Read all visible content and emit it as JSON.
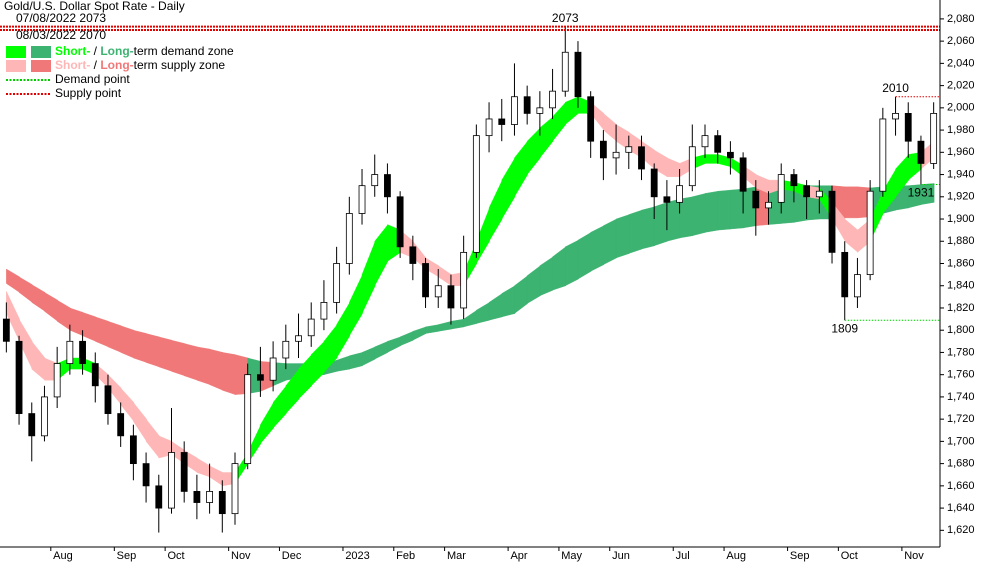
{
  "chart_data": {
    "type": "candlestick",
    "title": "Gold/U.S. Dollar Spot Rate - Daily",
    "categories": [
      null,
      null,
      null,
      null,
      "Aug",
      null,
      null,
      null,
      null,
      "Sep",
      null,
      null,
      null,
      "Oct",
      null,
      null,
      null,
      null,
      "Nov",
      null,
      null,
      null,
      "Dec",
      null,
      null,
      null,
      null,
      "2023",
      null,
      null,
      null,
      "Feb",
      null,
      null,
      null,
      "Mar",
      null,
      null,
      null,
      null,
      "Apr",
      null,
      null,
      null,
      "May",
      null,
      null,
      null,
      "Jun",
      null,
      null,
      null,
      null,
      "Jul",
      null,
      null,
      null,
      "Aug",
      null,
      null,
      null,
      null,
      "Sep",
      null,
      null,
      null,
      "Oct",
      null,
      null,
      null,
      null,
      "Nov",
      null,
      null
    ],
    "open": [
      1810,
      1790,
      1725,
      1705,
      1740,
      1770,
      1790,
      1770,
      1750,
      1725,
      1705,
      1680,
      1660,
      1640,
      1690,
      1655,
      1645,
      1655,
      1635,
      1680,
      1760,
      1755,
      1775,
      1790,
      1795,
      1810,
      1825,
      1860,
      1905,
      1930,
      1940,
      1920,
      1875,
      1860,
      1830,
      1840,
      1820,
      1870,
      1975,
      1990,
      1985,
      2010,
      1995,
      2000,
      2015,
      2050,
      2010,
      1970,
      1955,
      1960,
      1965,
      1945,
      1920,
      1915,
      1930,
      1965,
      1975,
      1960,
      1955,
      1925,
      1910,
      1915,
      1940,
      1930,
      1920,
      1925,
      1870,
      1830,
      1850,
      1925,
      1990,
      1995,
      1970,
      1950
    ],
    "high": [
      1825,
      1795,
      1735,
      1750,
      1785,
      1805,
      1800,
      1780,
      1760,
      1735,
      1715,
      1690,
      1670,
      1730,
      1700,
      1670,
      1680,
      1665,
      1690,
      1770,
      1785,
      1790,
      1805,
      1815,
      1825,
      1845,
      1875,
      1920,
      1945,
      1958,
      1950,
      1925,
      1885,
      1865,
      1855,
      1850,
      1885,
      1985,
      2005,
      2008,
      2040,
      2020,
      2015,
      2035,
      2073,
      2060,
      2015,
      1980,
      1985,
      1975,
      1975,
      1950,
      1935,
      1945,
      1985,
      1985,
      1980,
      1970,
      1960,
      1935,
      1925,
      1950,
      1945,
      1935,
      1935,
      1930,
      1880,
      1865,
      1935,
      2000,
      2010,
      2005,
      1975,
      2005
    ],
    "low": [
      1780,
      1715,
      1682,
      1700,
      1730,
      1760,
      1760,
      1735,
      1715,
      1695,
      1665,
      1645,
      1618,
      1635,
      1645,
      1630,
      1635,
      1618,
      1625,
      1675,
      1740,
      1745,
      1765,
      1775,
      1785,
      1800,
      1815,
      1850,
      1895,
      1920,
      1905,
      1865,
      1845,
      1820,
      1820,
      1805,
      1810,
      1865,
      1960,
      1970,
      1975,
      1985,
      1975,
      1990,
      2010,
      2000,
      1955,
      1935,
      1940,
      1945,
      1935,
      1900,
      1890,
      1905,
      1925,
      1955,
      1950,
      1940,
      1905,
      1885,
      1895,
      1905,
      1915,
      1900,
      1905,
      1860,
      1809,
      1820,
      1845,
      1920,
      1975,
      1955,
      1931,
      1945
    ],
    "close": [
      1790,
      1725,
      1705,
      1740,
      1770,
      1790,
      1770,
      1750,
      1725,
      1705,
      1680,
      1660,
      1640,
      1690,
      1655,
      1645,
      1655,
      1635,
      1680,
      1760,
      1755,
      1775,
      1790,
      1795,
      1810,
      1825,
      1860,
      1905,
      1930,
      1940,
      1920,
      1875,
      1860,
      1830,
      1840,
      1820,
      1870,
      1975,
      1990,
      1985,
      2010,
      1995,
      2000,
      2015,
      2050,
      2010,
      1970,
      1955,
      1960,
      1965,
      1945,
      1920,
      1915,
      1930,
      1965,
      1975,
      1960,
      1955,
      1925,
      1910,
      1915,
      1940,
      1930,
      1920,
      1925,
      1870,
      1830,
      1850,
      1925,
      1990,
      1995,
      1970,
      1950,
      1995
    ],
    "zones": {
      "long": {
        "upper": [
          1855,
          1848,
          1841,
          1834,
          1827,
          1820,
          1816,
          1812,
          1808,
          1804,
          1800,
          1797,
          1794,
          1791,
          1788,
          1785,
          1783,
          1780,
          1778,
          1775,
          1772,
          1771,
          1770,
          1770,
          1770,
          1770,
          1773,
          1777,
          1780,
          1785,
          1790,
          1794,
          1799,
          1803,
          1805,
          1808,
          1810,
          1818,
          1825,
          1833,
          1840,
          1849,
          1858,
          1866,
          1875,
          1881,
          1888,
          1894,
          1900,
          1904,
          1908,
          1911,
          1915,
          1918,
          1920,
          1923,
          1925,
          1926,
          1927,
          1929,
          1930,
          1930,
          1930,
          1930,
          1930,
          1930,
          1929,
          1929,
          1928,
          1929,
          1930,
          1930,
          1931,
          1932
        ],
        "lower": [
          1842,
          1834,
          1825,
          1817,
          1808,
          1800,
          1795,
          1790,
          1785,
          1780,
          1775,
          1771,
          1767,
          1763,
          1759,
          1755,
          1751,
          1746,
          1742,
          1743,
          1745,
          1750,
          1755,
          1757,
          1758,
          1760,
          1763,
          1765,
          1768,
          1774,
          1780,
          1786,
          1791,
          1797,
          1799,
          1801,
          1803,
          1806,
          1809,
          1812,
          1815,
          1824,
          1831,
          1836,
          1840,
          1846,
          1853,
          1859,
          1865,
          1869,
          1873,
          1876,
          1880,
          1883,
          1885,
          1888,
          1890,
          1891,
          1892,
          1894,
          1895,
          1896,
          1897,
          1899,
          1900,
          1900,
          1901,
          1901,
          1902,
          1905,
          1908,
          1910,
          1913,
          1915
        ]
      },
      "short": {
        "upper": [
          1835,
          1810,
          1790,
          1775,
          1770,
          1775,
          1775,
          1770,
          1760,
          1748,
          1735,
          1720,
          1705,
          1700,
          1692,
          1685,
          1678,
          1672,
          1672,
          1690,
          1715,
          1735,
          1750,
          1765,
          1778,
          1790,
          1805,
          1825,
          1850,
          1880,
          1895,
          1890,
          1880,
          1865,
          1858,
          1850,
          1852,
          1880,
          1910,
          1935,
          1955,
          1970,
          1982,
          1992,
          2005,
          2010,
          2005,
          1995,
          1985,
          1978,
          1970,
          1962,
          1955,
          1950,
          1955,
          1958,
          1958,
          1955,
          1948,
          1940,
          1935,
          1935,
          1933,
          1930,
          1928,
          1915,
          1900,
          1890,
          1900,
          1925,
          1945,
          1958,
          1960,
          1970
        ],
        "lower": [
          1815,
          1790,
          1765,
          1755,
          1755,
          1765,
          1765,
          1760,
          1748,
          1733,
          1718,
          1700,
          1685,
          1688,
          1680,
          1672,
          1668,
          1660,
          1662,
          1680,
          1698,
          1712,
          1725,
          1738,
          1750,
          1762,
          1775,
          1795,
          1815,
          1840,
          1862,
          1870,
          1865,
          1855,
          1848,
          1840,
          1840,
          1860,
          1880,
          1900,
          1920,
          1940,
          1955,
          1970,
          1985,
          1995,
          1995,
          1980,
          1970,
          1962,
          1955,
          1945,
          1938,
          1938,
          1945,
          1950,
          1950,
          1947,
          1938,
          1928,
          1923,
          1927,
          1925,
          1920,
          1918,
          1900,
          1880,
          1870,
          1880,
          1905,
          1920,
          1935,
          1945,
          1955
        ]
      }
    },
    "supply_lines": [
      {
        "label": "07/08/2022 2073",
        "value": 2073
      },
      {
        "label": "08/03/2022 2070",
        "value": 2070
      }
    ],
    "supply_points": [
      2010
    ],
    "demand_points": [
      1931,
      1809
    ],
    "legend": [
      {
        "kind": "demand",
        "parts": [
          "Short-",
          " / ",
          "Long-",
          "term demand zone"
        ]
      },
      {
        "kind": "supply",
        "parts": [
          "Short-",
          " / ",
          "Long-",
          "term supply zone"
        ]
      },
      {
        "kind": "demand",
        "parts": [
          "Demand point"
        ]
      },
      {
        "kind": "supply",
        "parts": [
          "Supply point"
        ]
      }
    ],
    "colors": {
      "short_demand": "#00ff00",
      "long_demand": "#3cb371",
      "short_supply": "#ffb6b6",
      "long_supply": "#f07878",
      "demand_point": "#00cc00",
      "supply_point": "#e00000",
      "up": "#ffffff",
      "down": "#000000"
    },
    "ylim": [
      1605,
      2097
    ],
    "yticks": [
      {
        "value": 1620,
        "label": "1,620"
      },
      {
        "value": 1640,
        "label": "1,640"
      },
      {
        "value": 1660,
        "label": "1,660"
      },
      {
        "value": 1680,
        "label": "1,680"
      },
      {
        "value": 1700,
        "label": "1,700"
      },
      {
        "value": 1720,
        "label": "1,720"
      },
      {
        "value": 1740,
        "label": "1,740"
      },
      {
        "value": 1760,
        "label": "1,760"
      },
      {
        "value": 1780,
        "label": "1,780"
      },
      {
        "value": 1800,
        "label": "1,800"
      },
      {
        "value": 1820,
        "label": "1,820"
      },
      {
        "value": 1840,
        "label": "1,840"
      },
      {
        "value": 1860,
        "label": "1,860"
      },
      {
        "value": 1880,
        "label": "1,880"
      },
      {
        "value": 1900,
        "label": "1,900"
      },
      {
        "value": 1920,
        "label": "1,920"
      },
      {
        "value": 1940,
        "label": "1,940"
      },
      {
        "value": 1960,
        "label": "1,960"
      },
      {
        "value": 1980,
        "label": "1,980"
      },
      {
        "value": 2000,
        "label": "2,000"
      },
      {
        "value": 2020,
        "label": "2,020"
      },
      {
        "value": 2040,
        "label": "2,040"
      },
      {
        "value": 2060,
        "label": "2,060"
      },
      {
        "value": 2080,
        "label": "2,080"
      }
    ]
  }
}
